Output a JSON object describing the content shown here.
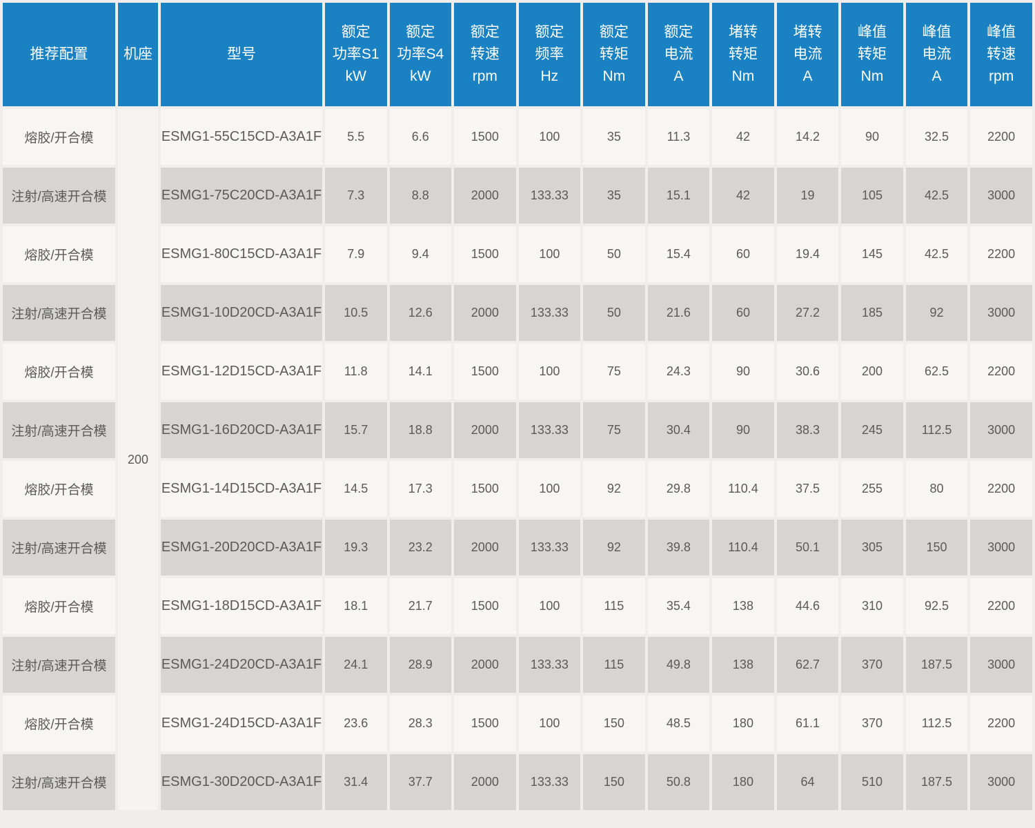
{
  "chart_data": {
    "type": "table",
    "title": "",
    "headers": [
      "推荐配置",
      "机座",
      "型号",
      "额定\n功率S1\nkW",
      "额定\n功率S4\nkW",
      "额定\n转速\nrpm",
      "额定\n频率\nHz",
      "额定\n转矩\nNm",
      "额定\n电流\nA",
      "堵转\n转矩\nNm",
      "堵转\n电流\nA",
      "峰值\n转矩\nNm",
      "峰值\n电流\nA",
      "峰值\n转速\nrpm"
    ],
    "frame_value": "200",
    "rows": [
      {
        "config": "熔胶/开合模",
        "model": "ESMG1-55C15CD-A3A1F",
        "values": [
          "5.5",
          "6.6",
          "1500",
          "100",
          "35",
          "11.3",
          "42",
          "14.2",
          "90",
          "32.5",
          "2200"
        ]
      },
      {
        "config": "注射/高速开合模",
        "model": "ESMG1-75C20CD-A3A1F",
        "values": [
          "7.3",
          "8.8",
          "2000",
          "133.33",
          "35",
          "15.1",
          "42",
          "19",
          "105",
          "42.5",
          "3000"
        ]
      },
      {
        "config": "熔胶/开合模",
        "model": "ESMG1-80C15CD-A3A1F",
        "values": [
          "7.9",
          "9.4",
          "1500",
          "100",
          "50",
          "15.4",
          "60",
          "19.4",
          "145",
          "42.5",
          "2200"
        ]
      },
      {
        "config": "注射/高速开合模",
        "model": "ESMG1-10D20CD-A3A1F",
        "values": [
          "10.5",
          "12.6",
          "2000",
          "133.33",
          "50",
          "21.6",
          "60",
          "27.2",
          "185",
          "92",
          "3000"
        ]
      },
      {
        "config": "熔胶/开合模",
        "model": "ESMG1-12D15CD-A3A1F",
        "values": [
          "11.8",
          "14.1",
          "1500",
          "100",
          "75",
          "24.3",
          "90",
          "30.6",
          "200",
          "62.5",
          "2200"
        ]
      },
      {
        "config": "注射/高速开合模",
        "model": "ESMG1-16D20CD-A3A1F",
        "values": [
          "15.7",
          "18.8",
          "2000",
          "133.33",
          "75",
          "30.4",
          "90",
          "38.3",
          "245",
          "112.5",
          "3000"
        ]
      },
      {
        "config": "熔胶/开合模",
        "model": "ESMG1-14D15CD-A3A1F",
        "values": [
          "14.5",
          "17.3",
          "1500",
          "100",
          "92",
          "29.8",
          "110.4",
          "37.5",
          "255",
          "80",
          "2200"
        ]
      },
      {
        "config": "注射/高速开合模",
        "model": "ESMG1-20D20CD-A3A1F",
        "values": [
          "19.3",
          "23.2",
          "2000",
          "133.33",
          "92",
          "39.8",
          "110.4",
          "50.1",
          "305",
          "150",
          "3000"
        ]
      },
      {
        "config": "熔胶/开合模",
        "model": "ESMG1-18D15CD-A3A1F",
        "values": [
          "18.1",
          "21.7",
          "1500",
          "100",
          "115",
          "35.4",
          "138",
          "44.6",
          "310",
          "92.5",
          "2200"
        ]
      },
      {
        "config": "注射/高速开合模",
        "model": "ESMG1-24D20CD-A3A1F",
        "values": [
          "24.1",
          "28.9",
          "2000",
          "133.33",
          "115",
          "49.8",
          "138",
          "62.7",
          "370",
          "187.5",
          "3000"
        ]
      },
      {
        "config": "熔胶/开合模",
        "model": "ESMG1-24D15CD-A3A1F",
        "values": [
          "23.6",
          "28.3",
          "1500",
          "100",
          "150",
          "48.5",
          "180",
          "61.1",
          "370",
          "112.5",
          "2200"
        ]
      },
      {
        "config": "注射/高速开合模",
        "model": "ESMG1-30D20CD-A3A1F",
        "values": [
          "31.4",
          "37.7",
          "2000",
          "133.33",
          "150",
          "50.8",
          "180",
          "64",
          "510",
          "187.5",
          "3000"
        ]
      }
    ],
    "layout_hints": {
      "frame_column_merged_rows": 12,
      "row_striping": "odd-light-even-gray",
      "grid": "white 4px separators"
    }
  },
  "colors": {
    "header_bg": "#1a82c2",
    "header_text": "#ffffff",
    "row_light": "#f7f6f4",
    "row_dark": "#d6d5d3",
    "frame_cell_bg": "#f5f4f2",
    "body_text": "#5b5a58",
    "separator": "#ffffff",
    "page_bg": "#efeeec"
  }
}
